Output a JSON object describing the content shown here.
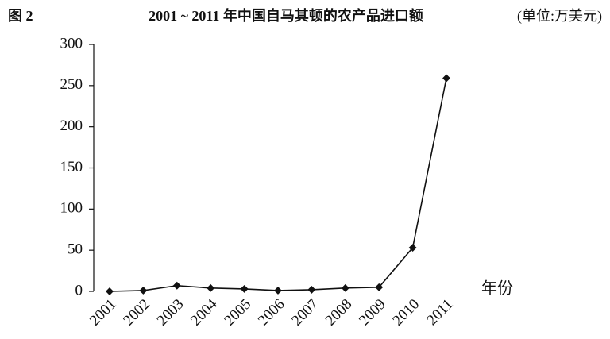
{
  "chart_data": {
    "type": "line",
    "figure_label": "图 2",
    "title": "2001 ~ 2011 年中国自马其顿的农产品进口额",
    "unit_note": "(单位:万美元)",
    "x_label": "年份",
    "categories": [
      "2001",
      "2002",
      "2003",
      "2004",
      "2005",
      "2006",
      "2007",
      "2008",
      "2009",
      "2010",
      "2011"
    ],
    "values": [
      0,
      1,
      7,
      4,
      3,
      1,
      2,
      4,
      5,
      53,
      259
    ],
    "color": "#111111",
    "ylim": [
      0,
      300
    ],
    "yticks": [
      0,
      50,
      100,
      150,
      200,
      250,
      300
    ],
    "grid": false
  }
}
